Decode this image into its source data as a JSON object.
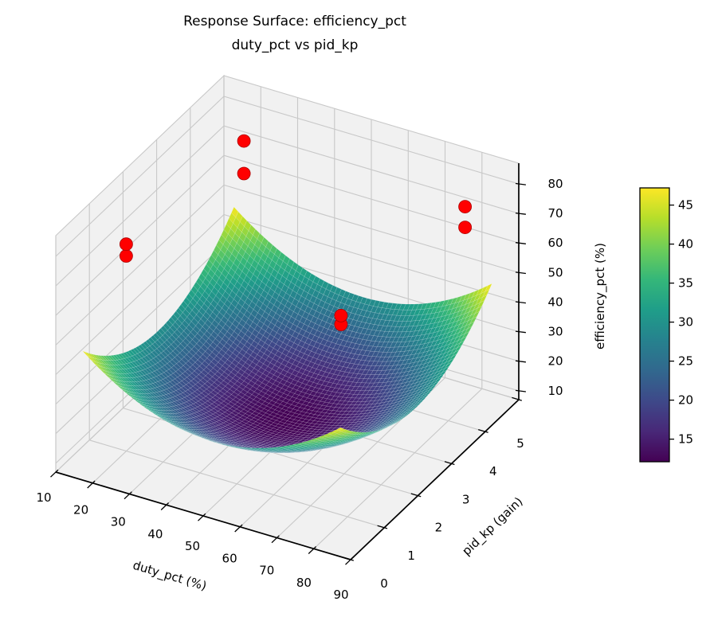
{
  "chart_data": {
    "type": "surface3d",
    "title": "Response Surface: efficiency_pct",
    "subtitle": "duty_pct vs pid_kp",
    "x_axis": {
      "label": "duty_pct (%)",
      "ticks": [
        10,
        20,
        30,
        40,
        50,
        60,
        70,
        80,
        90
      ],
      "range": [
        10,
        90
      ]
    },
    "y_axis": {
      "label": "pid_kp (gain)",
      "ticks": [
        0,
        1,
        2,
        3,
        4,
        5
      ],
      "range": [
        0,
        5
      ]
    },
    "z_axis": {
      "label": "efficiency_pct (%)",
      "ticks": [
        10,
        20,
        30,
        40,
        50,
        60,
        70,
        80
      ],
      "range": [
        7,
        87
      ]
    },
    "surface": {
      "description": "quadratic bowl: z = z_min + coeff_x*(x-x0)^2 + coeff_y*(y-y0)^2",
      "x_domain": [
        15,
        85
      ],
      "y_domain": [
        0.25,
        4.75
      ],
      "minimum": {
        "x": 50,
        "y": 2.5,
        "z": 12.1
      },
      "coeff_x": 0.0143,
      "coeff_y": 3.457,
      "z_min": 12.1,
      "z_max": 47.2,
      "colormap": "viridis",
      "mesh_n": 60
    },
    "scatter_points": [
      {
        "duty_pct": 20,
        "pid_kp": 1.0,
        "efficiency_pct": 77
      },
      {
        "duty_pct": 20,
        "pid_kp": 1.0,
        "efficiency_pct": 73
      },
      {
        "duty_pct": 20,
        "pid_kp": 4.5,
        "efficiency_pct": 74
      },
      {
        "duty_pct": 20,
        "pid_kp": 4.5,
        "efficiency_pct": 63
      },
      {
        "duty_pct": 80,
        "pid_kp": 4.5,
        "efficiency_pct": 74
      },
      {
        "duty_pct": 80,
        "pid_kp": 4.5,
        "efficiency_pct": 67
      },
      {
        "duty_pct": 60,
        "pid_kp": 3.0,
        "efficiency_pct": 46
      },
      {
        "duty_pct": 60,
        "pid_kp": 3.0,
        "efficiency_pct": 43
      }
    ],
    "colorbar": {
      "ticks": [
        15,
        20,
        25,
        30,
        35,
        40,
        45
      ],
      "vmin": 12.1,
      "vmax": 47.2
    },
    "legend_position": "none",
    "grid": true
  },
  "colors": {
    "background": "#ffffff",
    "pane": "#f1f1f1",
    "grid": "#c8c8c8",
    "axis": "#000000",
    "text": "#000000",
    "scatter": "#ff0000",
    "scatter_edge": "#aa0000",
    "mesh_line": "rgba(255,255,255,0.25)",
    "viridis": [
      "#440154",
      "#482878",
      "#3e4989",
      "#31688e",
      "#26828e",
      "#1f9e89",
      "#35b779",
      "#6ece58",
      "#b5de2b",
      "#fde725"
    ]
  }
}
